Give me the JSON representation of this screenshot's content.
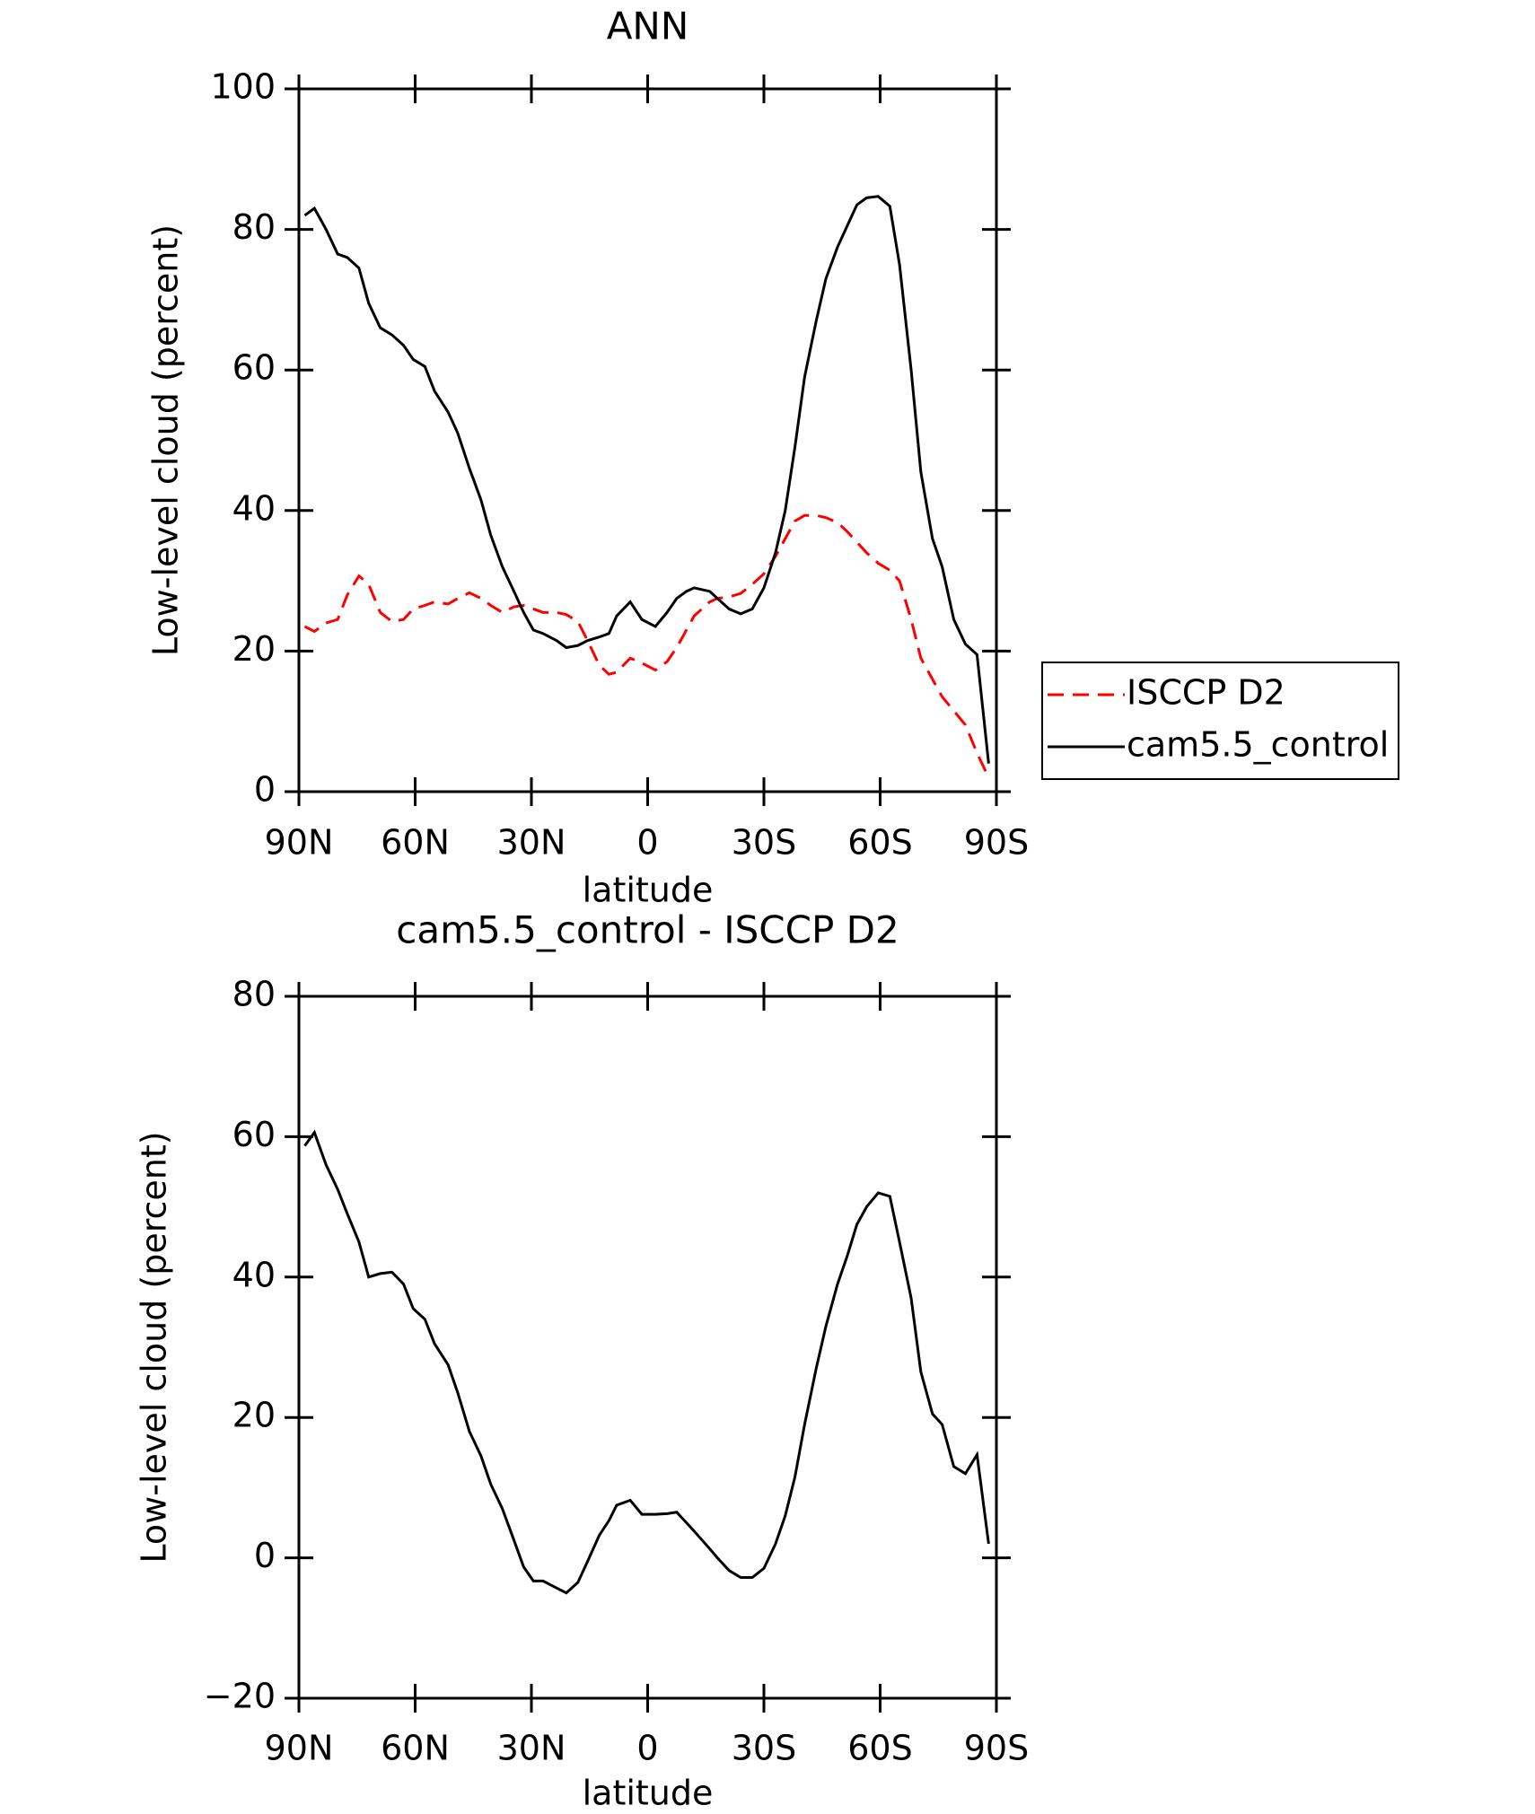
{
  "chart_data": [
    {
      "type": "line",
      "title": "ANN",
      "xlabel": "latitude",
      "ylabel": "Low-level cloud (percent)",
      "xlim": [
        90,
        -90
      ],
      "xticks": [
        {
          "value": 90,
          "label": "90N"
        },
        {
          "value": 60,
          "label": "60N"
        },
        {
          "value": 30,
          "label": "30N"
        },
        0,
        {
          "value": -30,
          "label": "30S"
        },
        {
          "value": -60,
          "label": "60S"
        },
        {
          "value": -90,
          "label": "90S"
        }
      ],
      "ylim": [
        0,
        100
      ],
      "yticks": [
        0,
        20,
        40,
        60,
        80,
        100
      ],
      "legend": "outside right",
      "x": [
        88.5,
        86,
        83,
        80,
        77.5,
        74.5,
        72,
        69,
        66,
        63,
        60.5,
        57.5,
        55,
        51.5,
        49,
        46,
        43,
        40.5,
        37.5,
        34.5,
        32,
        29.5,
        27,
        23.5,
        21,
        18,
        15.5,
        12.5,
        10,
        8,
        4.5,
        1.5,
        -2,
        -5,
        -7.5,
        -10,
        -12,
        -16,
        -18,
        -21,
        -24,
        -27,
        -30,
        -33,
        -35.5,
        -38,
        -40.5,
        -43.5,
        -46,
        -49,
        -51.5,
        -54,
        -56.5,
        -59.5,
        -62.5,
        -65,
        -68,
        -70.5,
        -73.5,
        -76,
        -79,
        -82,
        -85,
        -88
      ],
      "series": [
        {
          "name": "ISCCP D2",
          "color": "#ff0000",
          "dashed": true,
          "values": [
            23.5,
            22.8,
            24,
            24.5,
            28,
            30.7,
            29.5,
            25.5,
            24.2,
            24.5,
            26,
            26.5,
            27,
            26.7,
            27.5,
            28.3,
            27.5,
            26.5,
            25.5,
            26.3,
            26.5,
            26,
            25.5,
            25.5,
            25.2,
            24.2,
            21.5,
            18,
            16.7,
            17,
            19,
            18.3,
            17.3,
            18.5,
            20.5,
            23,
            25,
            27,
            27.5,
            27.7,
            28.2,
            29.5,
            31,
            33.5,
            36,
            38.5,
            39.3,
            39.3,
            39,
            38.3,
            37,
            35.5,
            34,
            32.5,
            31.5,
            30,
            24.5,
            19,
            16,
            13.5,
            11.5,
            9.5,
            5.5,
            2
          ]
        },
        {
          "name": "cam5.5_control",
          "color": "#000000",
          "dashed": false,
          "values": [
            82,
            83,
            80,
            76.5,
            76,
            74.5,
            69.5,
            66,
            65,
            63.5,
            61.5,
            60.5,
            57,
            54,
            51,
            46,
            41.5,
            36.5,
            32,
            28.5,
            25.5,
            23,
            22.5,
            21.5,
            20.5,
            20.8,
            21.5,
            22,
            22.5,
            25,
            27,
            24.5,
            23.5,
            25.5,
            27.5,
            28.5,
            29,
            28.5,
            27.5,
            26,
            25.3,
            26,
            29,
            34,
            40,
            49,
            59,
            67,
            73,
            77.5,
            80.5,
            83.5,
            84.5,
            84.7,
            83.3,
            75,
            60,
            45.5,
            36,
            32,
            24.5,
            21,
            19.5,
            4
          ]
        }
      ]
    },
    {
      "type": "line",
      "title": "cam5.5_control - ISCCP D2",
      "xlabel": "latitude",
      "ylabel": "Low-level cloud (percent)",
      "xlim": [
        90,
        -90
      ],
      "xticks": [
        {
          "value": 90,
          "label": "90N"
        },
        {
          "value": 60,
          "label": "60N"
        },
        {
          "value": 30,
          "label": "30N"
        },
        0,
        {
          "value": -30,
          "label": "30S"
        },
        {
          "value": -60,
          "label": "60S"
        },
        {
          "value": -90,
          "label": "90S"
        }
      ],
      "ylim": [
        -20,
        80
      ],
      "yticks": [
        {
          "value": -20,
          "label": "−20"
        },
        0,
        20,
        40,
        60,
        80
      ],
      "x": [
        88.5,
        86,
        83,
        80,
        77.5,
        74.5,
        72,
        69,
        66,
        63,
        60.5,
        57.5,
        55,
        51.5,
        49,
        46,
        43,
        40.5,
        37.5,
        34.5,
        32,
        29.5,
        27,
        23.5,
        21,
        18,
        15.5,
        12.5,
        10,
        8,
        4.5,
        1.5,
        -2,
        -5,
        -7.5,
        -10,
        -12,
        -16,
        -18,
        -21,
        -24,
        -27,
        -30,
        -33,
        -35.5,
        -38,
        -40.5,
        -43.5,
        -46,
        -49,
        -51.5,
        -54,
        -56.5,
        -59.5,
        -62.5,
        -65,
        -68,
        -70.5,
        -73.5,
        -76,
        -79,
        -82,
        -85,
        -88
      ],
      "series": [
        {
          "color": "#000000",
          "dashed": false,
          "values": [
            58.7,
            60.6,
            56,
            52.5,
            49,
            45,
            40,
            40.5,
            40.7,
            39,
            35.5,
            34,
            30.5,
            27.5,
            23.5,
            18,
            14.5,
            10.5,
            7,
            2.5,
            -1.3,
            -3.3,
            -3.3,
            -4.3,
            -5,
            -3.5,
            -0.5,
            3.2,
            5.3,
            7.5,
            8.2,
            6.2,
            6.2,
            6.3,
            6.5,
            5,
            3.8,
            1.3,
            0,
            -1.8,
            -2.8,
            -2.8,
            -1.5,
            2,
            6,
            11.5,
            19,
            27,
            33,
            39,
            43,
            47.5,
            50,
            52,
            51.5,
            45,
            37,
            26.5,
            20.5,
            19,
            13,
            12,
            14.7,
            2
          ]
        }
      ]
    }
  ]
}
